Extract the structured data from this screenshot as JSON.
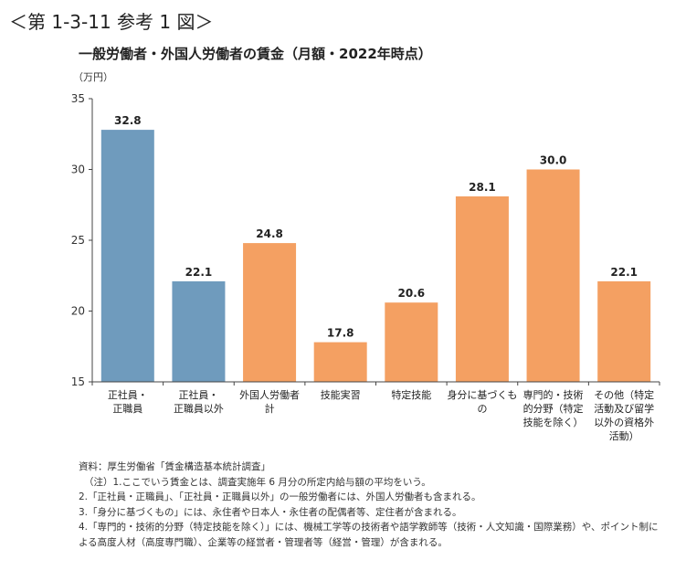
{
  "figure_label": "＜第 1-3-11 参考 1 図＞",
  "colors": {
    "japanese_bar": "#6f9bbd",
    "foreign_bar": "#f4a062",
    "axis": "#444444"
  },
  "chart_data": {
    "type": "bar",
    "title": "一般労働者・外国人労働者の賃金（月額・2022年時点）",
    "ylabel": "（万円）",
    "xlabel": "",
    "ylim": [
      15,
      35
    ],
    "yticks": [
      15,
      20,
      25,
      30,
      35
    ],
    "categories": [
      [
        "正社員・",
        "正職員"
      ],
      [
        "正社員・",
        "正職員以外"
      ],
      [
        "外国人労働者",
        "計"
      ],
      [
        "技能実習"
      ],
      [
        "特定技能"
      ],
      [
        "身分に基づくも",
        "の"
      ],
      [
        "専門的・技術",
        "的分野（特定",
        "技能を除く）"
      ],
      [
        "その他（特定",
        "活動及び留学",
        "以外の資格外",
        "活動）"
      ]
    ],
    "values": [
      32.8,
      22.1,
      24.8,
      17.8,
      20.6,
      28.1,
      30.0,
      22.1
    ],
    "value_labels": [
      "32.8",
      "22.1",
      "24.8",
      "17.8",
      "20.6",
      "28.1",
      "30.0",
      "22.1"
    ],
    "groups": [
      "japanese",
      "japanese",
      "foreign",
      "foreign",
      "foreign",
      "foreign",
      "foreign",
      "foreign"
    ]
  },
  "notes": [
    "資料：厚生労働省「賃金構造基本統計調査」",
    "（注）1.ここでいう賃金とは、調査実施年 6 月分の所定内給与額の平均をいう。",
    "2.「正社員・正職員」、「正社員・正職員以外」の一般労働者には、外国人労働者も含まれる。",
    "3.「身分に基づくもの」には、永住者や日本人・永住者の配偶者等、定住者が含まれる。",
    "4.「専門的・技術的分野（特定技能を除く）」には、機械工学等の技術者や語学教師等（技術・人文知識・国際業務）や、ポイント制による高度人材（高度専門職）、企業等の経営者・管理者等（経営・管理）が含まれる。"
  ]
}
